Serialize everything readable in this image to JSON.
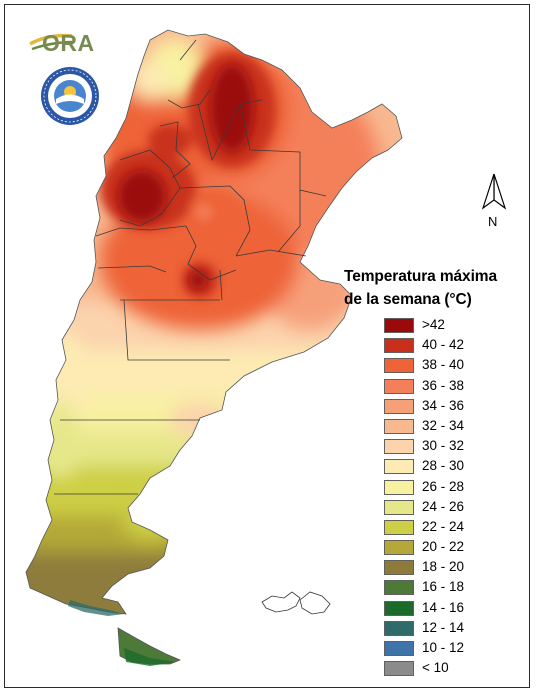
{
  "legend": {
    "title_line1": "Temperatura máxima",
    "title_line2": "de la semana (°C)",
    "items": [
      {
        "label": ">42",
        "color": "#9b0a0a"
      },
      {
        "label": "40 - 42",
        "color": "#c9301b"
      },
      {
        "label": "38 - 40",
        "color": "#ee6338"
      },
      {
        "label": "36 - 38",
        "color": "#f4805a"
      },
      {
        "label": "34 - 36",
        "color": "#f6a07a"
      },
      {
        "label": "32 - 34",
        "color": "#f8b890"
      },
      {
        "label": "30 - 32",
        "color": "#fbd3ad"
      },
      {
        "label": "28 - 30",
        "color": "#fdebb3"
      },
      {
        "label": "26 - 28",
        "color": "#f8f1a1"
      },
      {
        "label": "24 - 26",
        "color": "#e6e78a"
      },
      {
        "label": "22 - 24",
        "color": "#cdcf45"
      },
      {
        "label": "20 - 22",
        "color": "#b3a838"
      },
      {
        "label": "18 - 20",
        "color": "#8d7b3a"
      },
      {
        "label": "16 - 18",
        "color": "#4e7a39"
      },
      {
        "label": "14 - 16",
        "color": "#1b6b2b"
      },
      {
        "label": "12 - 14",
        "color": "#2e6b6a"
      },
      {
        "label": "10 - 12",
        "color": "#3f74a9"
      },
      {
        "label": "< 10",
        "color": "#8b8b8b"
      }
    ]
  },
  "logo": {
    "text": "ORA"
  },
  "compass": {
    "letter": "N",
    "icon": "north-arrow-icon"
  }
}
